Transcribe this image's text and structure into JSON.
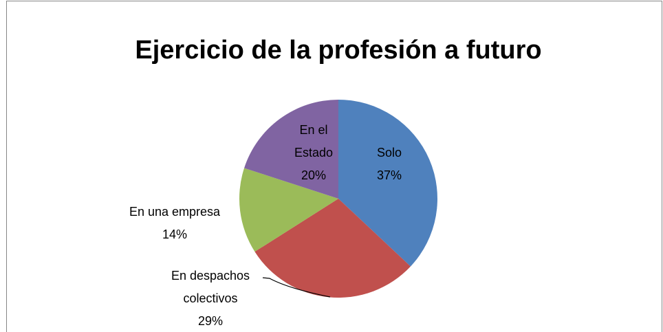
{
  "chart_data": {
    "type": "pie",
    "title": "Ejercicio de la profesión a futuro",
    "categories": [
      "Solo",
      "En despachos colectivos",
      "En una empresa",
      "En el Estado"
    ],
    "values": [
      37,
      29,
      14,
      20
    ],
    "value_labels": [
      "37%",
      "29%",
      "14%",
      "20%"
    ],
    "colors": [
      "#4f81bd",
      "#c0504d",
      "#9bbb59",
      "#8064a2"
    ]
  }
}
